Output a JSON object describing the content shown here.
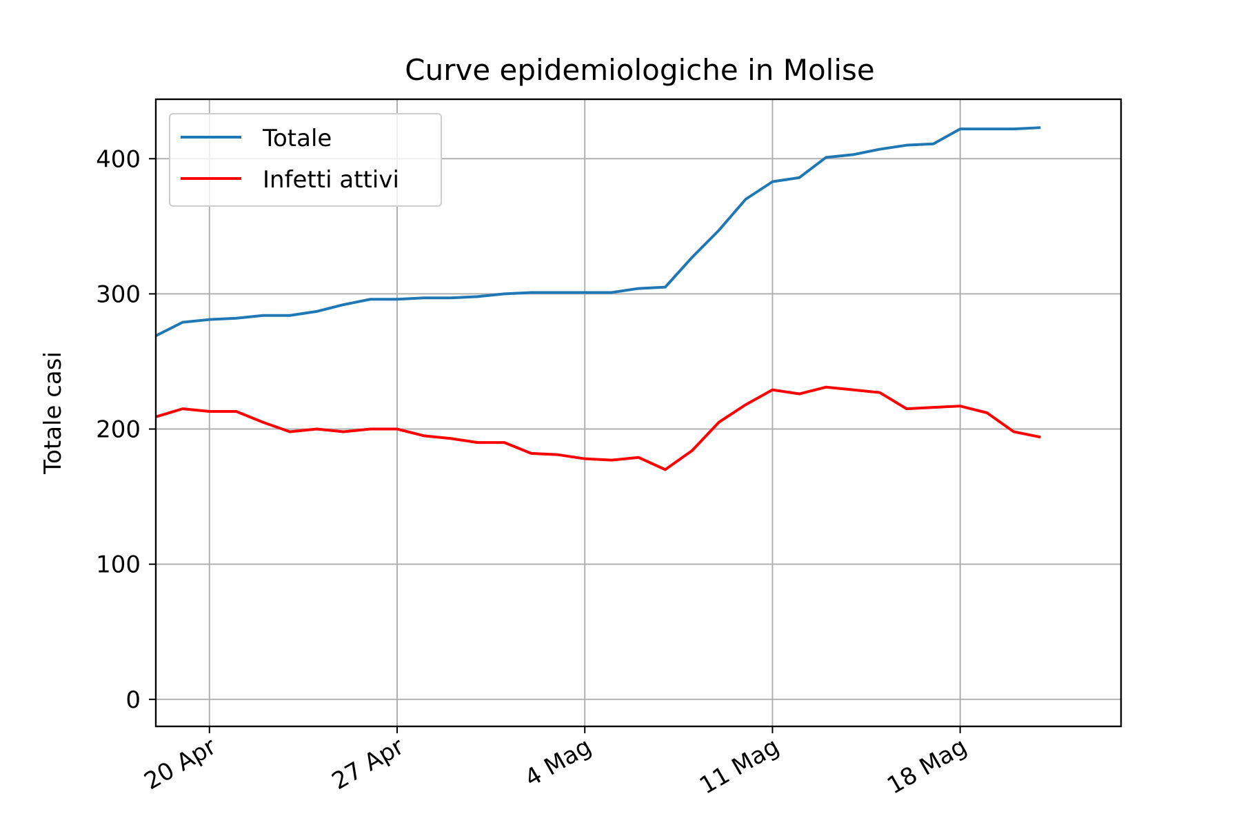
{
  "chart_data": {
    "type": "line",
    "title": "Curve epidemiologiche in Molise",
    "xlabel": "",
    "ylabel": "Totale casi",
    "ylim": [
      -20,
      444
    ],
    "yticks": [
      0,
      100,
      200,
      300,
      400
    ],
    "xlim": [
      "2020-04-18",
      "2020-05-24"
    ],
    "xticks": [
      {
        "date": "2020-04-20",
        "label": "20 Apr"
      },
      {
        "date": "2020-04-27",
        "label": "27 Apr"
      },
      {
        "date": "2020-05-04",
        "label": "4 Mag"
      },
      {
        "date": "2020-05-11",
        "label": "11 Mag"
      },
      {
        "date": "2020-05-18",
        "label": "18 Mag"
      }
    ],
    "grid": true,
    "legend": "upper-left",
    "x": [
      "2020-04-18",
      "2020-04-19",
      "2020-04-20",
      "2020-04-21",
      "2020-04-22",
      "2020-04-23",
      "2020-04-24",
      "2020-04-25",
      "2020-04-26",
      "2020-04-27",
      "2020-04-28",
      "2020-04-29",
      "2020-04-30",
      "2020-05-01",
      "2020-05-02",
      "2020-05-03",
      "2020-05-04",
      "2020-05-05",
      "2020-05-06",
      "2020-05-07",
      "2020-05-08",
      "2020-05-09",
      "2020-05-10",
      "2020-05-11",
      "2020-05-12",
      "2020-05-13",
      "2020-05-14",
      "2020-05-15",
      "2020-05-16",
      "2020-05-17",
      "2020-05-18",
      "2020-05-19",
      "2020-05-20",
      "2020-05-21"
    ],
    "series": [
      {
        "name": "Totale",
        "color": "#1f77b4",
        "values": [
          269,
          279,
          281,
          282,
          284,
          284,
          287,
          292,
          296,
          296,
          297,
          297,
          298,
          300,
          301,
          301,
          301,
          301,
          304,
          305,
          327,
          347,
          370,
          383,
          386,
          401,
          403,
          407,
          410,
          411,
          422,
          422,
          422,
          423
        ]
      },
      {
        "name": "Infetti attivi",
        "color": "#ff0000",
        "values": [
          209,
          215,
          213,
          213,
          205,
          198,
          200,
          198,
          200,
          200,
          195,
          193,
          190,
          190,
          182,
          181,
          178,
          177,
          179,
          170,
          184,
          205,
          218,
          229,
          226,
          231,
          229,
          227,
          215,
          216,
          217,
          212,
          198,
          194
        ]
      }
    ]
  }
}
